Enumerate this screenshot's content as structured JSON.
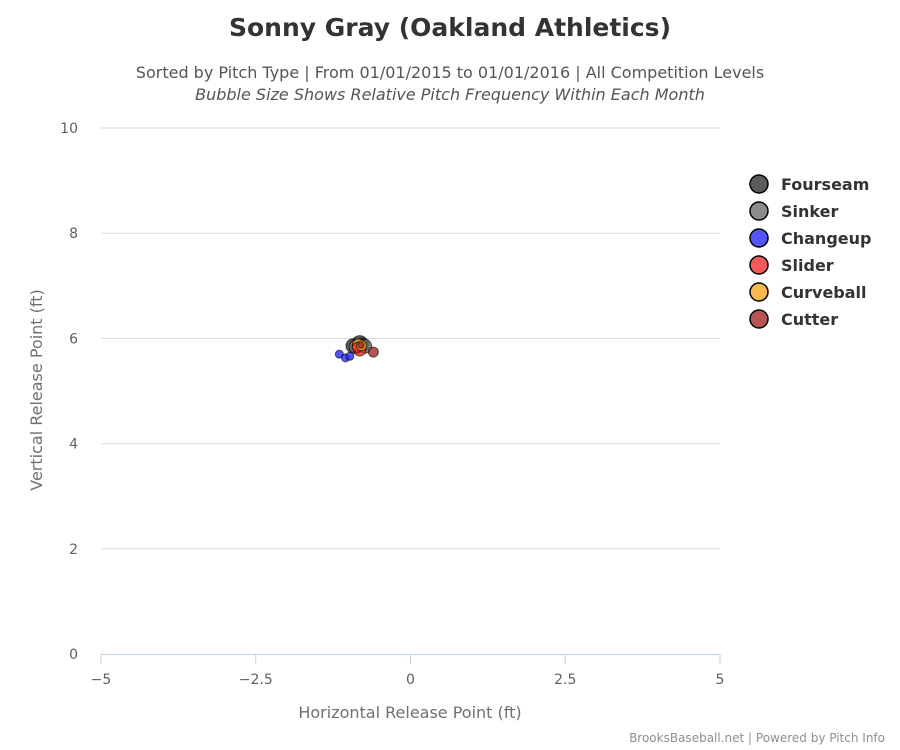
{
  "chart_data": {
    "type": "scatter",
    "title": "Sonny Gray (Oakland Athletics)",
    "subtitle": "Sorted by Pitch Type | From 01/01/2015 to 01/01/2016 | All Competition Levels",
    "subtitle2": "Bubble Size Shows Relative Pitch Frequency Within Each Month",
    "xlabel": "Horizontal Release Point (ft)",
    "ylabel": "Vertical Release Point (ft)",
    "xlim": [
      -5,
      5
    ],
    "ylim": [
      0,
      10
    ],
    "x_ticks": [
      "−5",
      "−2.5",
      "0",
      "2.5",
      "5"
    ],
    "y_ticks": [
      "0",
      "2",
      "4",
      "6",
      "8",
      "10"
    ],
    "grid": "horizontal",
    "legend_position": "right",
    "credits": "BrooksBaseball.net | Powered by Pitch Info",
    "series": [
      {
        "name": "Fourseam",
        "color": "#333333",
        "points": [
          {
            "x": -0.93,
            "y": 5.86,
            "r": 7
          },
          {
            "x": -0.82,
            "y": 5.9,
            "r": 8
          },
          {
            "x": -0.78,
            "y": 5.87,
            "r": 7
          }
        ]
      },
      {
        "name": "Sinker",
        "color": "#6e6e6e",
        "points": [
          {
            "x": -0.88,
            "y": 5.84,
            "r": 7
          },
          {
            "x": -0.74,
            "y": 5.85,
            "r": 7
          }
        ]
      },
      {
        "name": "Changeup",
        "color": "#2b2bf5",
        "points": [
          {
            "x": -1.15,
            "y": 5.7,
            "r": 4
          },
          {
            "x": -1.05,
            "y": 5.63,
            "r": 4
          },
          {
            "x": -0.98,
            "y": 5.66,
            "r": 4
          }
        ]
      },
      {
        "name": "Slider",
        "color": "#f23030",
        "points": [
          {
            "x": -0.82,
            "y": 5.78,
            "r": 6
          },
          {
            "x": -0.86,
            "y": 5.83,
            "r": 5
          }
        ]
      },
      {
        "name": "Curveball",
        "color": "#f5a623",
        "points": [
          {
            "x": -0.84,
            "y": 5.88,
            "r": 6
          },
          {
            "x": -0.79,
            "y": 5.86,
            "r": 5
          }
        ]
      },
      {
        "name": "Cutter",
        "color": "#a52a2a",
        "points": [
          {
            "x": -0.6,
            "y": 5.74,
            "r": 5
          },
          {
            "x": -0.8,
            "y": 5.87,
            "r": 3
          }
        ]
      }
    ]
  }
}
